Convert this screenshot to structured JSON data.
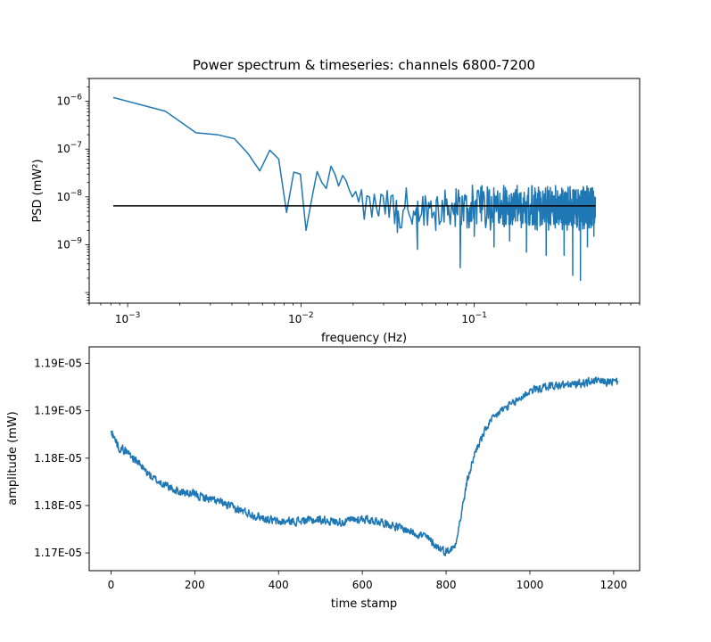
{
  "chart_data": [
    {
      "type": "line",
      "title": "Power spectrum & timeseries: channels 6800-7200",
      "xlabel": "frequency (Hz)",
      "ylabel": "PSD (mW²)",
      "xscale": "log",
      "yscale": "log",
      "xlim": [
        0.0006,
        0.9
      ],
      "ylim": [
        6e-11,
        3e-06
      ],
      "x_ticks": [
        {
          "value": 0.001,
          "base": "10",
          "exp": "−3"
        },
        {
          "value": 0.01,
          "base": "10",
          "exp": "−2"
        },
        {
          "value": 0.1,
          "base": "10",
          "exp": "−1"
        }
      ],
      "y_ticks": [
        {
          "value": 1e-09,
          "base": "10",
          "exp": "−9"
        },
        {
          "value": 1e-08,
          "base": "10",
          "exp": "−8"
        },
        {
          "value": 1e-07,
          "base": "10",
          "exp": "−7"
        },
        {
          "value": 1e-06,
          "base": "10",
          "exp": "−6"
        }
      ],
      "grid": false,
      "series": [
        {
          "color": "#1f77b4",
          "points": [
            [
              0.000826,
              1.2e-06
            ],
            [
              0.00165,
              6.2e-07
            ],
            [
              0.00248,
              2.2e-07
            ],
            [
              0.0033,
              2e-07
            ],
            [
              0.00413,
              1.65e-07
            ],
            [
              0.00496,
              8e-08
            ],
            [
              0.00579,
              3.5e-08
            ],
            [
              0.00661,
              9.5e-08
            ],
            [
              0.00744,
              6.2e-08
            ],
            [
              0.00826,
              4.7e-09
            ],
            [
              0.00909,
              3.3e-08
            ],
            [
              0.00992,
              3e-08
            ],
            [
              0.0107,
              2e-09
            ],
            [
              0.0116,
              1e-08
            ],
            [
              0.0124,
              3.4e-08
            ],
            [
              0.0132,
              2e-08
            ],
            [
              0.014,
              1.5e-08
            ],
            [
              0.0149,
              4.4e-08
            ],
            [
              0.0157,
              3e-08
            ],
            [
              0.0165,
              1.7e-08
            ],
            [
              0.0174,
              2.8e-08
            ],
            [
              0.0182,
              2.2e-08
            ],
            [
              0.019,
              1.4e-08
            ],
            [
              0.0198,
              1e-08
            ],
            [
              0.0207,
              1.3e-08
            ]
          ],
          "noise_band": {
            "from": 0.0207,
            "to": 0.5,
            "center": 6e-09,
            "low": 2e-09,
            "high": 1.6e-08
          },
          "dips": [
            [
              0.028,
              4e-09
            ],
            [
              0.036,
              1.8e-09
            ],
            [
              0.047,
              8e-10
            ],
            [
              0.06,
              2e-09
            ],
            [
              0.083,
              3.3e-10
            ],
            [
              0.1,
              1.5e-09
            ],
            [
              0.13,
              9e-10
            ],
            [
              0.16,
              1.2e-09
            ],
            [
              0.2,
              7e-10
            ],
            [
              0.26,
              6e-10
            ],
            [
              0.33,
              6e-10
            ],
            [
              0.37,
              2.3e-10
            ],
            [
              0.41,
              1.8e-10
            ],
            [
              0.45,
              9e-10
            ],
            [
              0.49,
              1.5e-09
            ]
          ]
        },
        {
          "color": "#000000",
          "points": [
            [
              0.000826,
              6.5e-09
            ],
            [
              0.5,
              6.5e-09
            ]
          ]
        }
      ]
    },
    {
      "type": "line",
      "title": "",
      "xlabel": "time stamp",
      "ylabel": "amplitude (mW)",
      "xlim": [
        -52,
        1262
      ],
      "ylim": [
        1.1725e-05,
        1.1914e-05
      ],
      "x_ticks": [
        0,
        200,
        400,
        600,
        800,
        1000,
        1200
      ],
      "y_ticks": [
        {
          "value": 1.174e-05,
          "label": "1.17E-05"
        },
        {
          "value": 1.178e-05,
          "label": "1.18E-05"
        },
        {
          "value": 1.182e-05,
          "label": "1.18E-05"
        },
        {
          "value": 1.186e-05,
          "label": "1.19E-05"
        },
        {
          "value": 1.19e-05,
          "label": "1.19E-05"
        }
      ],
      "grid": false,
      "series": [
        {
          "color": "#1f77b4",
          "trend": [
            [
              0,
              1.1842e-05
            ],
            [
              20,
              1.1829e-05
            ],
            [
              40,
              1.1825e-05
            ],
            [
              60,
              1.1818e-05
            ],
            [
              80,
              1.181e-05
            ],
            [
              100,
              1.1803e-05
            ],
            [
              130,
              1.1797e-05
            ],
            [
              160,
              1.1792e-05
            ],
            [
              200,
              1.1789e-05
            ],
            [
              250,
              1.1784e-05
            ],
            [
              300,
              1.1777e-05
            ],
            [
              350,
              1.1771e-05
            ],
            [
              400,
              1.1766e-05
            ],
            [
              450,
              1.1767e-05
            ],
            [
              500,
              1.1768e-05
            ],
            [
              550,
              1.1766e-05
            ],
            [
              600,
              1.1769e-05
            ],
            [
              650,
              1.1766e-05
            ],
            [
              700,
              1.176e-05
            ],
            [
              750,
              1.1754e-05
            ],
            [
              780,
              1.1745e-05
            ],
            [
              800,
              1.1741e-05
            ],
            [
              820,
              1.1745e-05
            ],
            [
              835,
              1.177e-05
            ],
            [
              850,
              1.18e-05
            ],
            [
              870,
              1.1826e-05
            ],
            [
              900,
              1.1848e-05
            ],
            [
              930,
              1.186e-05
            ],
            [
              960,
              1.1866e-05
            ],
            [
              1000,
              1.1877e-05
            ],
            [
              1050,
              1.1881e-05
            ],
            [
              1100,
              1.1882e-05
            ],
            [
              1150,
              1.1885e-05
            ],
            [
              1210,
              1.1884e-05
            ]
          ],
          "noise_amplitude": 3.5e-09
        }
      ]
    }
  ]
}
